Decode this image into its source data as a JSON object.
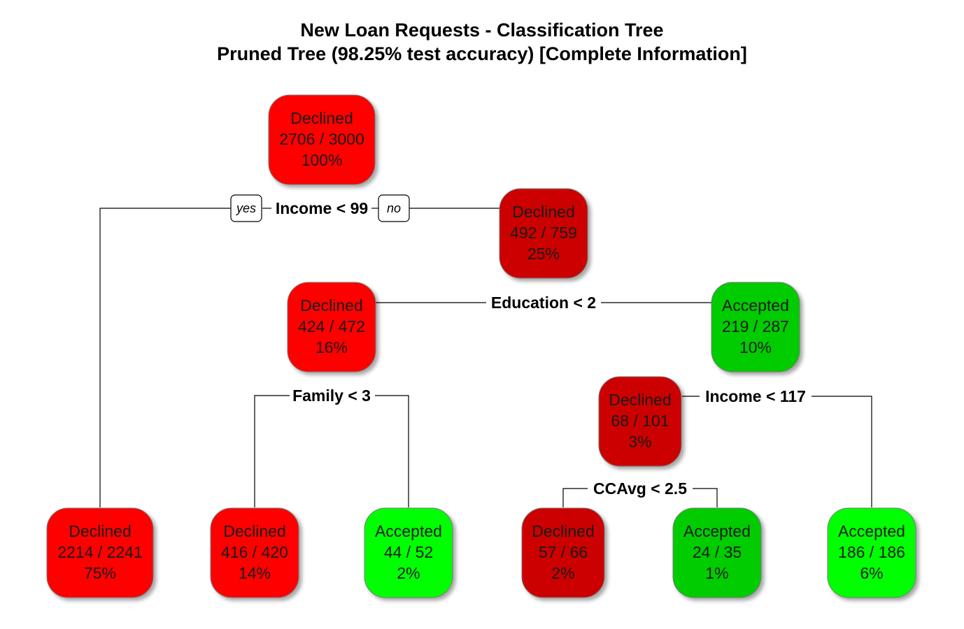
{
  "title": "New Loan Requests - Classification Tree",
  "subtitle": "Pruned Tree (98.25% test accuracy) [Complete Information]",
  "colors": {
    "declined_bright": "#ff0000",
    "declined_dark": "#cc0000",
    "accepted_mid": "#00cc00",
    "accepted_bright": "#00ff00",
    "text_dark": "#1a1a1a",
    "text_on_dark": "#1a1a1a"
  },
  "branch_labels": {
    "yes": "yes",
    "no": "no"
  },
  "nodes": [
    {
      "id": "n1",
      "label": "Declined",
      "counts": "2706 / 3000",
      "pct": "100%",
      "color": "#ff0000"
    },
    {
      "id": "n2",
      "label": "Declined",
      "counts": "2214 / 2241",
      "pct": "75%",
      "color": "#ff0000"
    },
    {
      "id": "n3",
      "label": "Declined",
      "counts": "492 / 759",
      "pct": "25%",
      "color": "#cc0000"
    },
    {
      "id": "n6",
      "label": "Declined",
      "counts": "424 / 472",
      "pct": "16%",
      "color": "#ff0000"
    },
    {
      "id": "n7",
      "label": "Accepted",
      "counts": "219 / 287",
      "pct": "10%",
      "color": "#00cc00"
    },
    {
      "id": "n12",
      "label": "Declined",
      "counts": "416 / 420",
      "pct": "14%",
      "color": "#ff0000"
    },
    {
      "id": "n13",
      "label": "Accepted",
      "counts": "44 / 52",
      "pct": "2%",
      "color": "#00ff00"
    },
    {
      "id": "n14",
      "label": "Declined",
      "counts": "68 / 101",
      "pct": "3%",
      "color": "#cc0000"
    },
    {
      "id": "n15",
      "label": "Accepted",
      "counts": "186 / 186",
      "pct": "6%",
      "color": "#00ff00"
    },
    {
      "id": "n28",
      "label": "Declined",
      "counts": "57 / 66",
      "pct": "2%",
      "color": "#cc0000"
    },
    {
      "id": "n29",
      "label": "Accepted",
      "counts": "24 / 35",
      "pct": "1%",
      "color": "#00cc00"
    }
  ],
  "splits": [
    {
      "id": "s1",
      "text": "Income < 99"
    },
    {
      "id": "s3",
      "text": "Education < 2"
    },
    {
      "id": "s6",
      "text": "Family < 3"
    },
    {
      "id": "s7",
      "text": "Income < 117"
    },
    {
      "id": "s14",
      "text": "CCAvg < 2.5"
    }
  ]
}
